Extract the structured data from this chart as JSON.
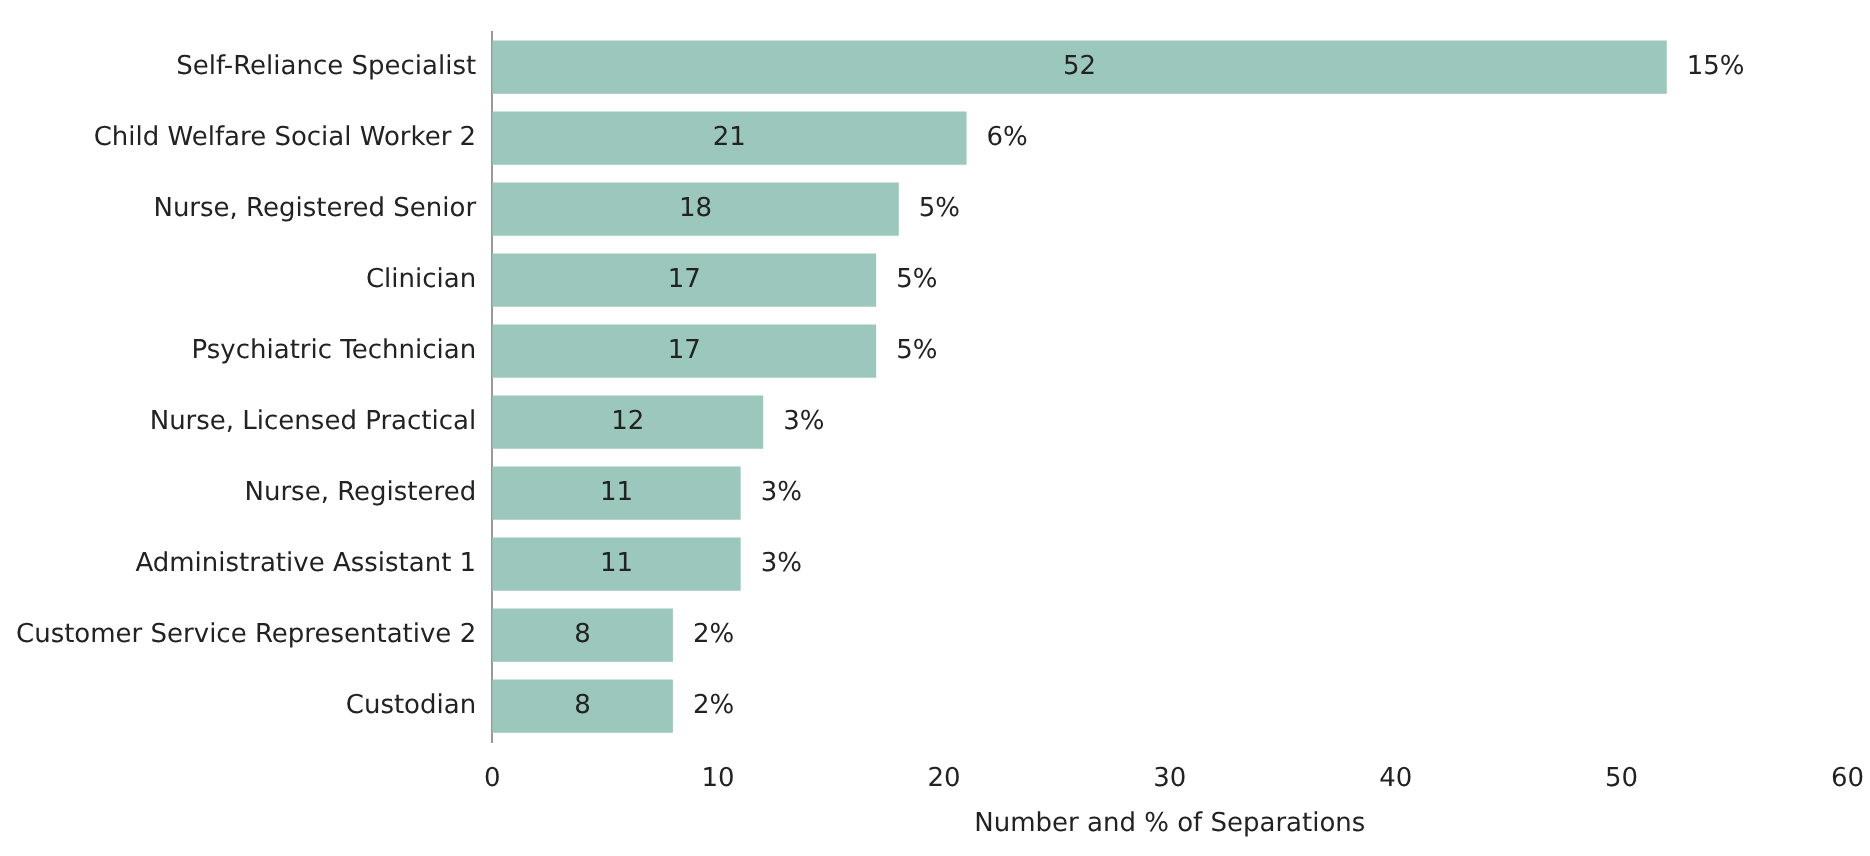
{
  "chart_data": {
    "type": "bar",
    "orientation": "horizontal",
    "xlabel": "Number and % of Separations",
    "categories": [
      "Self-Reliance Specialist",
      "Child Welfare Social Worker 2",
      "Nurse, Registered Senior",
      "Clinician",
      "Psychiatric Technician",
      "Nurse, Licensed Practical",
      "Nurse, Registered",
      "Administrative Assistant 1",
      "Customer Service Representative 2",
      "Custodian"
    ],
    "values": [
      52,
      21,
      18,
      17,
      17,
      12,
      11,
      11,
      8,
      8
    ],
    "data_labels": true,
    "annotations": [
      {
        "text": "15%",
        "x": 52,
        "y": "Self-Reliance Specialist"
      },
      {
        "text": "6%",
        "x": 21,
        "y": "Child Welfare Social Worker 2"
      },
      {
        "text": "5%",
        "x": 18,
        "y": "Nurse, Registered Senior"
      },
      {
        "text": "5%",
        "x": 17,
        "y": "Clinician"
      },
      {
        "text": "5%",
        "x": 17,
        "y": "Psychiatric Technician"
      },
      {
        "text": "3%",
        "x": 12,
        "y": "Nurse, Licensed Practical"
      },
      {
        "text": "3%",
        "x": 11,
        "y": "Nurse, Registered"
      },
      {
        "text": "3%",
        "x": 11,
        "y": "Administrative Assistant 1"
      },
      {
        "text": "2%",
        "x": 8,
        "y": "Customer Service Representative 2"
      },
      {
        "text": "2%",
        "x": 8,
        "y": "Custodian"
      }
    ],
    "color": "#9cc7bc",
    "xlim": [
      0,
      60
    ],
    "xticks": [
      0,
      10,
      20,
      30,
      40,
      50,
      60
    ],
    "grid": false,
    "legend": false
  }
}
